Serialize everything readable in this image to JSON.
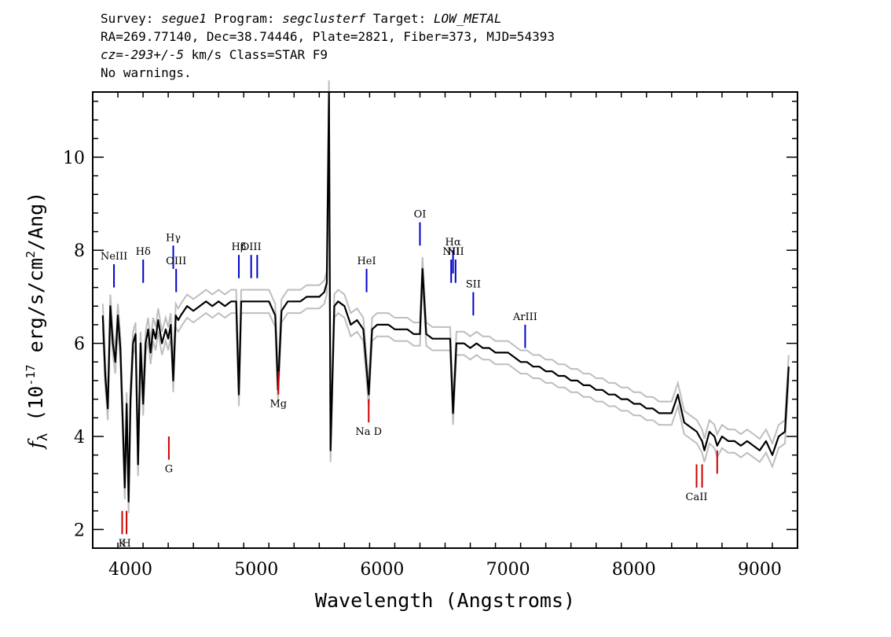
{
  "header": {
    "line1": [
      {
        "t": "Survey: ",
        "i": false
      },
      {
        "t": "segue1",
        "i": true
      },
      {
        "t": " Program: ",
        "i": false
      },
      {
        "t": "segclusterf",
        "i": true
      },
      {
        "t": " Target: ",
        "i": false
      },
      {
        "t": "LOW_METAL",
        "i": true
      }
    ],
    "line2": [
      {
        "t": "RA=269.77140, Dec=38.74446, Plate=2821, Fiber=373, MJD=54393",
        "i": false
      }
    ],
    "line3": [
      {
        "t": "cz=-293+/-5",
        "i": true
      },
      {
        "t": " km/s Class=STAR F9",
        "i": false
      }
    ],
    "line4": [
      {
        "t": "No warnings.",
        "i": false
      }
    ]
  },
  "chart_data": {
    "type": "line",
    "xlabel": "Wavelength (Angstroms)",
    "ylabel_parts": [
      "f",
      "λ",
      " (10",
      "-17",
      " erg/s/cm",
      "2",
      "/Ang)"
    ],
    "xlim": [
      3700,
      9300
    ],
    "ylim": [
      1.6,
      11.4
    ],
    "xticks": [
      4000,
      5000,
      6000,
      7000,
      8000,
      9000
    ],
    "yticks": [
      2,
      4,
      6,
      8,
      10
    ],
    "x_minor_step": 200,
    "y_minor_step": 0.4,
    "colors": {
      "flux": "#000000",
      "error": "#bebebe",
      "emission": "#0000cc",
      "absorption": "#cc0000",
      "frame": "#000000"
    },
    "series": [
      {
        "x": [
          3780,
          3800,
          3820,
          3840,
          3860,
          3880,
          3900,
          3920,
          3940,
          3955,
          3970,
          3985,
          4000,
          4020,
          4040,
          4060,
          4080,
          4101,
          4120,
          4140,
          4160,
          4180,
          4200,
          4220,
          4250,
          4280,
          4300,
          4320,
          4340,
          4360,
          4380,
          4400,
          4450,
          4500,
          4550,
          4600,
          4650,
          4700,
          4750,
          4800,
          4840,
          4861,
          4880,
          4920,
          4960,
          5000,
          5050,
          5100,
          5150,
          5172,
          5200,
          5250,
          5300,
          5350,
          5400,
          5450,
          5500,
          5540,
          5560,
          5577,
          5590,
          5620,
          5650,
          5700,
          5750,
          5800,
          5850,
          5893,
          5920,
          5960,
          6000,
          6050,
          6100,
          6150,
          6200,
          6250,
          6300,
          6320,
          6350,
          6400,
          6450,
          6500,
          6540,
          6563,
          6590,
          6650,
          6700,
          6750,
          6800,
          6850,
          6900,
          6950,
          7000,
          7050,
          7100,
          7150,
          7200,
          7250,
          7300,
          7350,
          7400,
          7450,
          7500,
          7550,
          7600,
          7650,
          7700,
          7750,
          7800,
          7850,
          7900,
          7950,
          8000,
          8050,
          8100,
          8150,
          8200,
          8250,
          8300,
          8350,
          8400,
          8450,
          8500,
          8520,
          8542,
          8560,
          8600,
          8640,
          8662,
          8700,
          8750,
          8800,
          8850,
          8900,
          8950,
          9000,
          9050,
          9100,
          9150,
          9200,
          9230
        ],
        "y": [
          6.6,
          5.3,
          4.6,
          6.8,
          6.0,
          5.6,
          6.6,
          5.9,
          4.2,
          2.9,
          4.7,
          2.6,
          4.8,
          6.0,
          6.2,
          3.4,
          6.0,
          4.7,
          6.0,
          6.3,
          5.8,
          6.3,
          6.1,
          6.5,
          6.0,
          6.3,
          6.1,
          6.4,
          5.2,
          6.6,
          6.5,
          6.6,
          6.8,
          6.7,
          6.8,
          6.9,
          6.8,
          6.9,
          6.8,
          6.9,
          6.9,
          4.9,
          6.9,
          6.9,
          6.9,
          6.9,
          6.9,
          6.9,
          6.6,
          5.0,
          6.7,
          6.9,
          6.9,
          6.9,
          7.0,
          7.0,
          7.0,
          7.1,
          7.3,
          11.4,
          3.7,
          6.8,
          6.9,
          6.8,
          6.4,
          6.5,
          6.3,
          4.9,
          6.3,
          6.4,
          6.4,
          6.4,
          6.3,
          6.3,
          6.3,
          6.2,
          6.2,
          7.6,
          6.2,
          6.1,
          6.1,
          6.1,
          6.1,
          4.5,
          6.0,
          6.0,
          5.9,
          6.0,
          5.9,
          5.9,
          5.8,
          5.8,
          5.8,
          5.7,
          5.6,
          5.6,
          5.5,
          5.5,
          5.4,
          5.4,
          5.3,
          5.3,
          5.2,
          5.2,
          5.1,
          5.1,
          5.0,
          5.0,
          4.9,
          4.9,
          4.8,
          4.8,
          4.7,
          4.7,
          4.6,
          4.6,
          4.5,
          4.5,
          4.5,
          4.9,
          4.3,
          4.2,
          4.1,
          4.0,
          3.9,
          3.7,
          4.1,
          4.0,
          3.8,
          4.0,
          3.9,
          3.9,
          3.8,
          3.9,
          3.8,
          3.7,
          3.9,
          3.6,
          4.0,
          4.1,
          5.5
        ]
      }
    ],
    "lines": [
      {
        "label": "NeIII",
        "x": 3869,
        "y1": 7.2,
        "y2": 7.7,
        "kind": "emission"
      },
      {
        "label": "Hδ",
        "x": 4101,
        "y1": 7.3,
        "y2": 7.8,
        "kind": "emission"
      },
      {
        "label": "Hγ",
        "x": 4340,
        "y1": 7.6,
        "y2": 8.1,
        "kind": "emission"
      },
      {
        "label": "OIII",
        "x": 4363,
        "y1": 7.1,
        "y2": 7.6,
        "kind": "emission"
      },
      {
        "label": "Hβ",
        "x": 4861,
        "y1": 7.4,
        "y2": 7.9,
        "kind": "emission"
      },
      {
        "label": "OIII",
        "x": 4959,
        "y1": 7.4,
        "y2": 7.9,
        "kind": "emission"
      },
      {
        "label": "",
        "x": 5007,
        "y1": 7.4,
        "y2": 7.9,
        "kind": "emission"
      },
      {
        "label": "HeI",
        "x": 5876,
        "y1": 7.1,
        "y2": 7.6,
        "kind": "emission"
      },
      {
        "label": "OI",
        "x": 6300,
        "y1": 8.1,
        "y2": 8.6,
        "kind": "emission"
      },
      {
        "label": "NII",
        "x": 6548,
        "y1": 7.3,
        "y2": 7.8,
        "kind": "emission"
      },
      {
        "label": "Hα",
        "x": 6563,
        "y1": 7.5,
        "y2": 8.0,
        "kind": "emission"
      },
      {
        "label": "NII",
        "x": 6583,
        "y1": 7.3,
        "y2": 7.8,
        "kind": "emission"
      },
      {
        "label": "SII",
        "x": 6724,
        "y1": 6.6,
        "y2": 7.1,
        "kind": "emission"
      },
      {
        "label": "ArIII",
        "x": 7136,
        "y1": 5.9,
        "y2": 6.4,
        "kind": "emission"
      },
      {
        "label": "K",
        "x": 3934,
        "y1": 1.9,
        "y2": 2.4,
        "kind": "absorption"
      },
      {
        "label": "H",
        "x": 3969,
        "y1": 1.9,
        "y2": 2.4,
        "kind": "absorption"
      },
      {
        "label": "G",
        "x": 4305,
        "y1": 3.5,
        "y2": 4.0,
        "kind": "absorption"
      },
      {
        "label": "Mg",
        "x": 5175,
        "y1": 4.9,
        "y2": 5.4,
        "kind": "absorption"
      },
      {
        "label": "Na D",
        "x": 5893,
        "y1": 4.3,
        "y2": 4.8,
        "kind": "absorption"
      },
      {
        "label": "CaII",
        "x": 8498,
        "y1": 2.9,
        "y2": 3.4,
        "kind": "absorption"
      },
      {
        "label": "",
        "x": 8542,
        "y1": 2.9,
        "y2": 3.4,
        "kind": "absorption"
      },
      {
        "label": "",
        "x": 8662,
        "y1": 3.2,
        "y2": 3.7,
        "kind": "absorption"
      }
    ]
  }
}
